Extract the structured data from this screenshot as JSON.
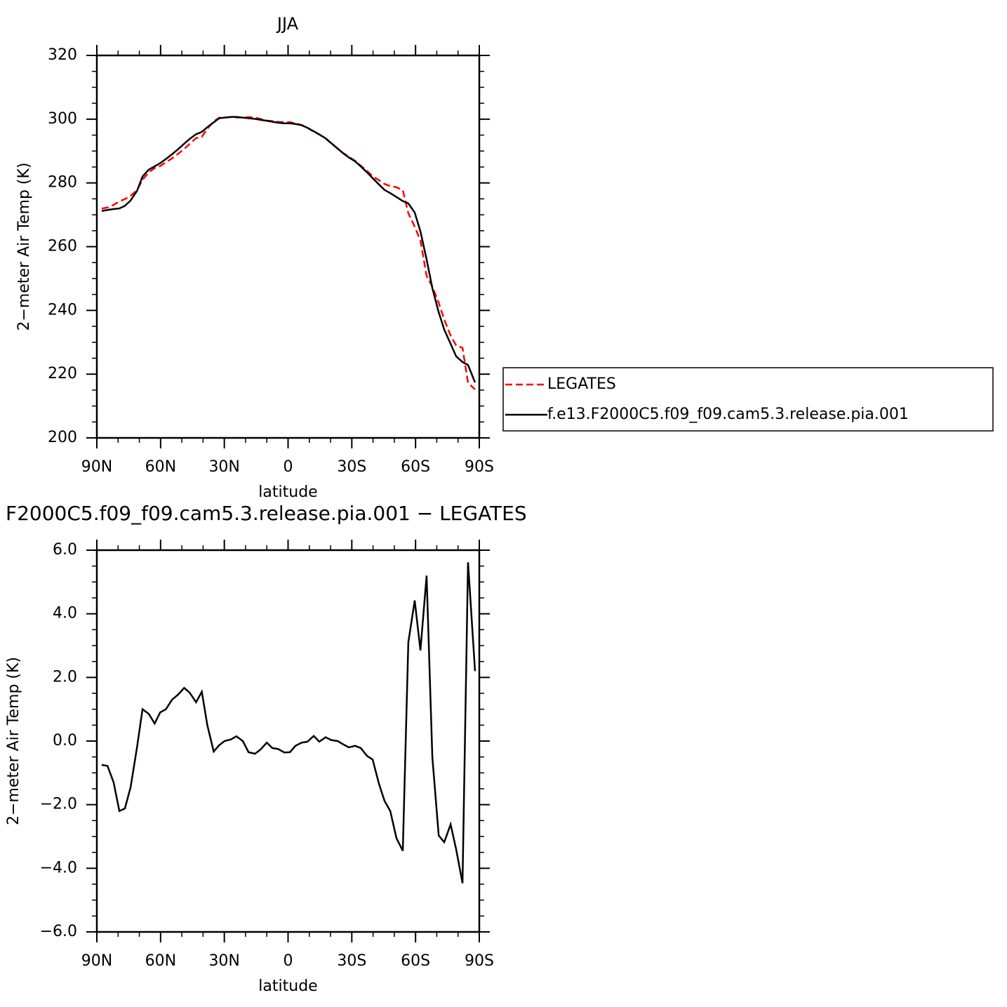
{
  "chart_data": [
    {
      "type": "line",
      "title": "JJA",
      "xlabel": "latitude",
      "ylabel": "2−meter Air Temp (K)",
      "x": [
        87.7,
        85.0,
        82.1,
        79.4,
        76.8,
        74.1,
        71.1,
        68.5,
        65.5,
        62.8,
        60.2,
        57.5,
        54.6,
        51.9,
        48.9,
        46.3,
        43.3,
        40.6,
        38.0,
        35.0,
        32.4,
        29.9,
        26.9,
        24.3,
        21.3,
        18.6,
        15.6,
        13.0,
        10.0,
        7.4,
        4.7,
        1.7,
        -0.9,
        -3.5,
        -6.4,
        -9.1,
        -12.1,
        -14.7,
        -17.7,
        -20.3,
        -23.3,
        -25.9,
        -28.6,
        -31.5,
        -34.2,
        -37.2,
        -39.8,
        -42.8,
        -45.4,
        -48.1,
        -51.0,
        -54.0,
        -56.6,
        -59.6,
        -62.3,
        -65.2,
        -67.9,
        -70.9,
        -73.5,
        -76.5,
        -79.1,
        -82.1,
        -84.7,
        -88.0
      ],
      "xlim": [
        90,
        -90
      ],
      "xticks": [
        {
          "value": 90,
          "label": "90N"
        },
        {
          "value": 60,
          "label": "60N"
        },
        {
          "value": 30,
          "label": "30N"
        },
        0,
        {
          "value": -30,
          "label": "30S"
        },
        {
          "value": -60,
          "label": "60S"
        },
        {
          "value": -90,
          "label": "90S"
        }
      ],
      "ylim": [
        200,
        320
      ],
      "yticks": [
        200,
        220,
        240,
        260,
        280,
        300,
        320
      ],
      "legend": "right",
      "series": [
        {
          "name": "LEGATES",
          "color": "#ff0000",
          "line_style": "dashed",
          "values": [
            271.95,
            272.28,
            273.1,
            274.2,
            274.92,
            275.95,
            277.7,
            281.0,
            283.35,
            284.65,
            285.3,
            286.5,
            287.7,
            289.05,
            290.63,
            292.28,
            294.08,
            294.45,
            297.0,
            299.33,
            300.43,
            300.5,
            300.65,
            300.55,
            300.5,
            300.65,
            300.5,
            300.07,
            299.55,
            299.42,
            299.15,
            299.06,
            299.05,
            298.65,
            298.15,
            297.32,
            296.04,
            295.22,
            293.88,
            292.47,
            290.8,
            289.4,
            288.2,
            286.95,
            285.42,
            283.77,
            282.08,
            280.85,
            279.68,
            279.0,
            278.65,
            277.75,
            270.5,
            266.28,
            261.95,
            250.8,
            247.5,
            242.37,
            237.18,
            232.12,
            229.0,
            228.27,
            217.28,
            215.2
          ]
        },
        {
          "name": "f.e13.F2000C5.f09_f09.cam5.3.release.pia.001",
          "color": "#000000",
          "line_style": "solid",
          "values": [
            271.2,
            271.5,
            271.8,
            272.0,
            272.8,
            274.5,
            277.5,
            282.0,
            284.2,
            285.2,
            286.2,
            287.5,
            289.0,
            290.5,
            292.3,
            293.8,
            295.3,
            296.0,
            297.5,
            299.0,
            300.3,
            300.5,
            300.7,
            300.7,
            300.5,
            300.3,
            300.1,
            299.8,
            299.5,
            299.2,
            298.9,
            298.7,
            298.7,
            298.5,
            298.1,
            297.3,
            296.2,
            295.2,
            294.0,
            292.5,
            290.8,
            289.3,
            288.0,
            286.8,
            285.2,
            283.3,
            281.5,
            279.5,
            277.8,
            276.8,
            275.6,
            274.3,
            273.6,
            270.7,
            264.8,
            256.0,
            247.0,
            239.4,
            234.0,
            229.5,
            225.6,
            223.8,
            222.9,
            217.4
          ]
        }
      ]
    },
    {
      "type": "line",
      "title": "F2000C5.f09_f09.cam5.3.release.pia.001  −  LEGATES",
      "xlabel": "latitude",
      "ylabel": "2−meter Air Temp (K)",
      "x": [
        87.7,
        85.0,
        82.1,
        79.4,
        76.8,
        74.1,
        71.1,
        68.5,
        65.5,
        62.8,
        60.2,
        57.5,
        54.6,
        51.9,
        48.9,
        46.3,
        43.3,
        40.6,
        38.0,
        35.0,
        32.4,
        29.9,
        26.9,
        24.3,
        21.3,
        18.6,
        15.6,
        13.0,
        10.0,
        7.4,
        4.7,
        1.7,
        -0.9,
        -3.5,
        -6.4,
        -9.1,
        -12.1,
        -14.7,
        -17.7,
        -20.3,
        -23.3,
        -25.9,
        -28.6,
        -31.5,
        -34.2,
        -37.2,
        -39.8,
        -42.8,
        -45.4,
        -48.1,
        -51.0,
        -54.0,
        -56.6,
        -59.6,
        -62.3,
        -65.2,
        -67.9,
        -70.9,
        -73.5,
        -76.5,
        -79.1,
        -82.1,
        -84.7,
        -88.0
      ],
      "xlim": [
        90,
        -90
      ],
      "xticks": [
        {
          "value": 90,
          "label": "90N"
        },
        {
          "value": 60,
          "label": "60N"
        },
        {
          "value": 30,
          "label": "30N"
        },
        0,
        {
          "value": -30,
          "label": "30S"
        },
        {
          "value": -60,
          "label": "60S"
        },
        {
          "value": -90,
          "label": "90S"
        }
      ],
      "ylim": [
        -6,
        6
      ],
      "yticks": [
        {
          "value": -6,
          "label": "−6.0"
        },
        {
          "value": -4,
          "label": "−4.0"
        },
        {
          "value": -2,
          "label": "−2.0"
        },
        {
          "value": 0,
          "label": "0.0"
        },
        {
          "value": 2,
          "label": "2.0"
        },
        {
          "value": 4,
          "label": "4.0"
        },
        {
          "value": 6,
          "label": "6.0"
        }
      ],
      "series": [
        {
          "color": "#000000",
          "line_style": "solid",
          "values": [
            -0.75,
            -0.78,
            -1.3,
            -2.2,
            -2.12,
            -1.45,
            -0.2,
            1.0,
            0.85,
            0.55,
            0.9,
            1.0,
            1.3,
            1.45,
            1.67,
            1.52,
            1.22,
            1.55,
            0.5,
            -0.33,
            -0.13,
            0.0,
            0.05,
            0.15,
            0.0,
            -0.35,
            -0.4,
            -0.27,
            -0.05,
            -0.22,
            -0.25,
            -0.36,
            -0.35,
            -0.15,
            -0.05,
            -0.02,
            0.16,
            -0.02,
            0.12,
            0.03,
            0.0,
            -0.1,
            -0.2,
            -0.15,
            -0.22,
            -0.47,
            -0.58,
            -1.35,
            -1.88,
            -2.2,
            -3.05,
            -3.45,
            3.1,
            4.42,
            2.85,
            5.2,
            -0.5,
            -2.97,
            -3.18,
            -2.62,
            -3.4,
            -4.47,
            5.62,
            2.2
          ]
        }
      ]
    }
  ]
}
